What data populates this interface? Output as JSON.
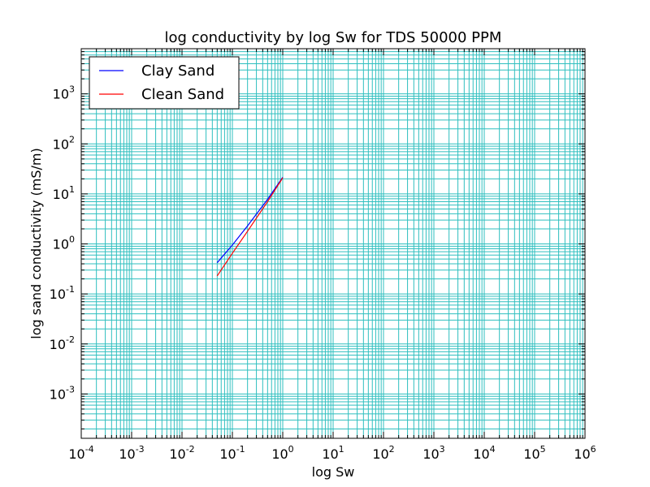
{
  "chart_data": {
    "type": "line",
    "title": "log conductivity by log Sw for TDS 50000 PPM",
    "xlabel": "log Sw",
    "ylabel": "log sand conductivity (mS/m)",
    "xscale": "log",
    "yscale": "log",
    "xlim": [
      0.0001,
      1000000
    ],
    "ylim": [
      0.00013,
      8000
    ],
    "grid": true,
    "grid_color": "#2fbfbf",
    "legend_position": "top-left",
    "x_ticks": [
      {
        "base": "10",
        "exp": "-4",
        "value": 0.0001
      },
      {
        "base": "10",
        "exp": "-3",
        "value": 0.001
      },
      {
        "base": "10",
        "exp": "-2",
        "value": 0.01
      },
      {
        "base": "10",
        "exp": "-1",
        "value": 0.1
      },
      {
        "base": "10",
        "exp": "0",
        "value": 1
      },
      {
        "base": "10",
        "exp": "1",
        "value": 10
      },
      {
        "base": "10",
        "exp": "2",
        "value": 100
      },
      {
        "base": "10",
        "exp": "3",
        "value": 1000
      },
      {
        "base": "10",
        "exp": "4",
        "value": 10000
      },
      {
        "base": "10",
        "exp": "5",
        "value": 100000
      },
      {
        "base": "10",
        "exp": "6",
        "value": 1000000
      }
    ],
    "y_ticks": [
      {
        "base": "10",
        "exp": "-3",
        "value": 0.001
      },
      {
        "base": "10",
        "exp": "-2",
        "value": 0.01
      },
      {
        "base": "10",
        "exp": "-1",
        "value": 0.1
      },
      {
        "base": "10",
        "exp": "0",
        "value": 1
      },
      {
        "base": "10",
        "exp": "1",
        "value": 10
      },
      {
        "base": "10",
        "exp": "2",
        "value": 100
      },
      {
        "base": "10",
        "exp": "3",
        "value": 1000
      }
    ],
    "series": [
      {
        "name": "Clay Sand",
        "color": "#0000ff",
        "x": [
          0.05,
          0.1,
          0.2,
          0.5,
          1.0
        ],
        "y": [
          0.42,
          0.95,
          2.3,
          7.8,
          21.5
        ]
      },
      {
        "name": "Clean Sand",
        "color": "#ff0000",
        "x": [
          0.05,
          0.1,
          0.2,
          0.5,
          1.0
        ],
        "y": [
          0.23,
          0.65,
          1.8,
          7.0,
          21.0
        ]
      }
    ]
  }
}
